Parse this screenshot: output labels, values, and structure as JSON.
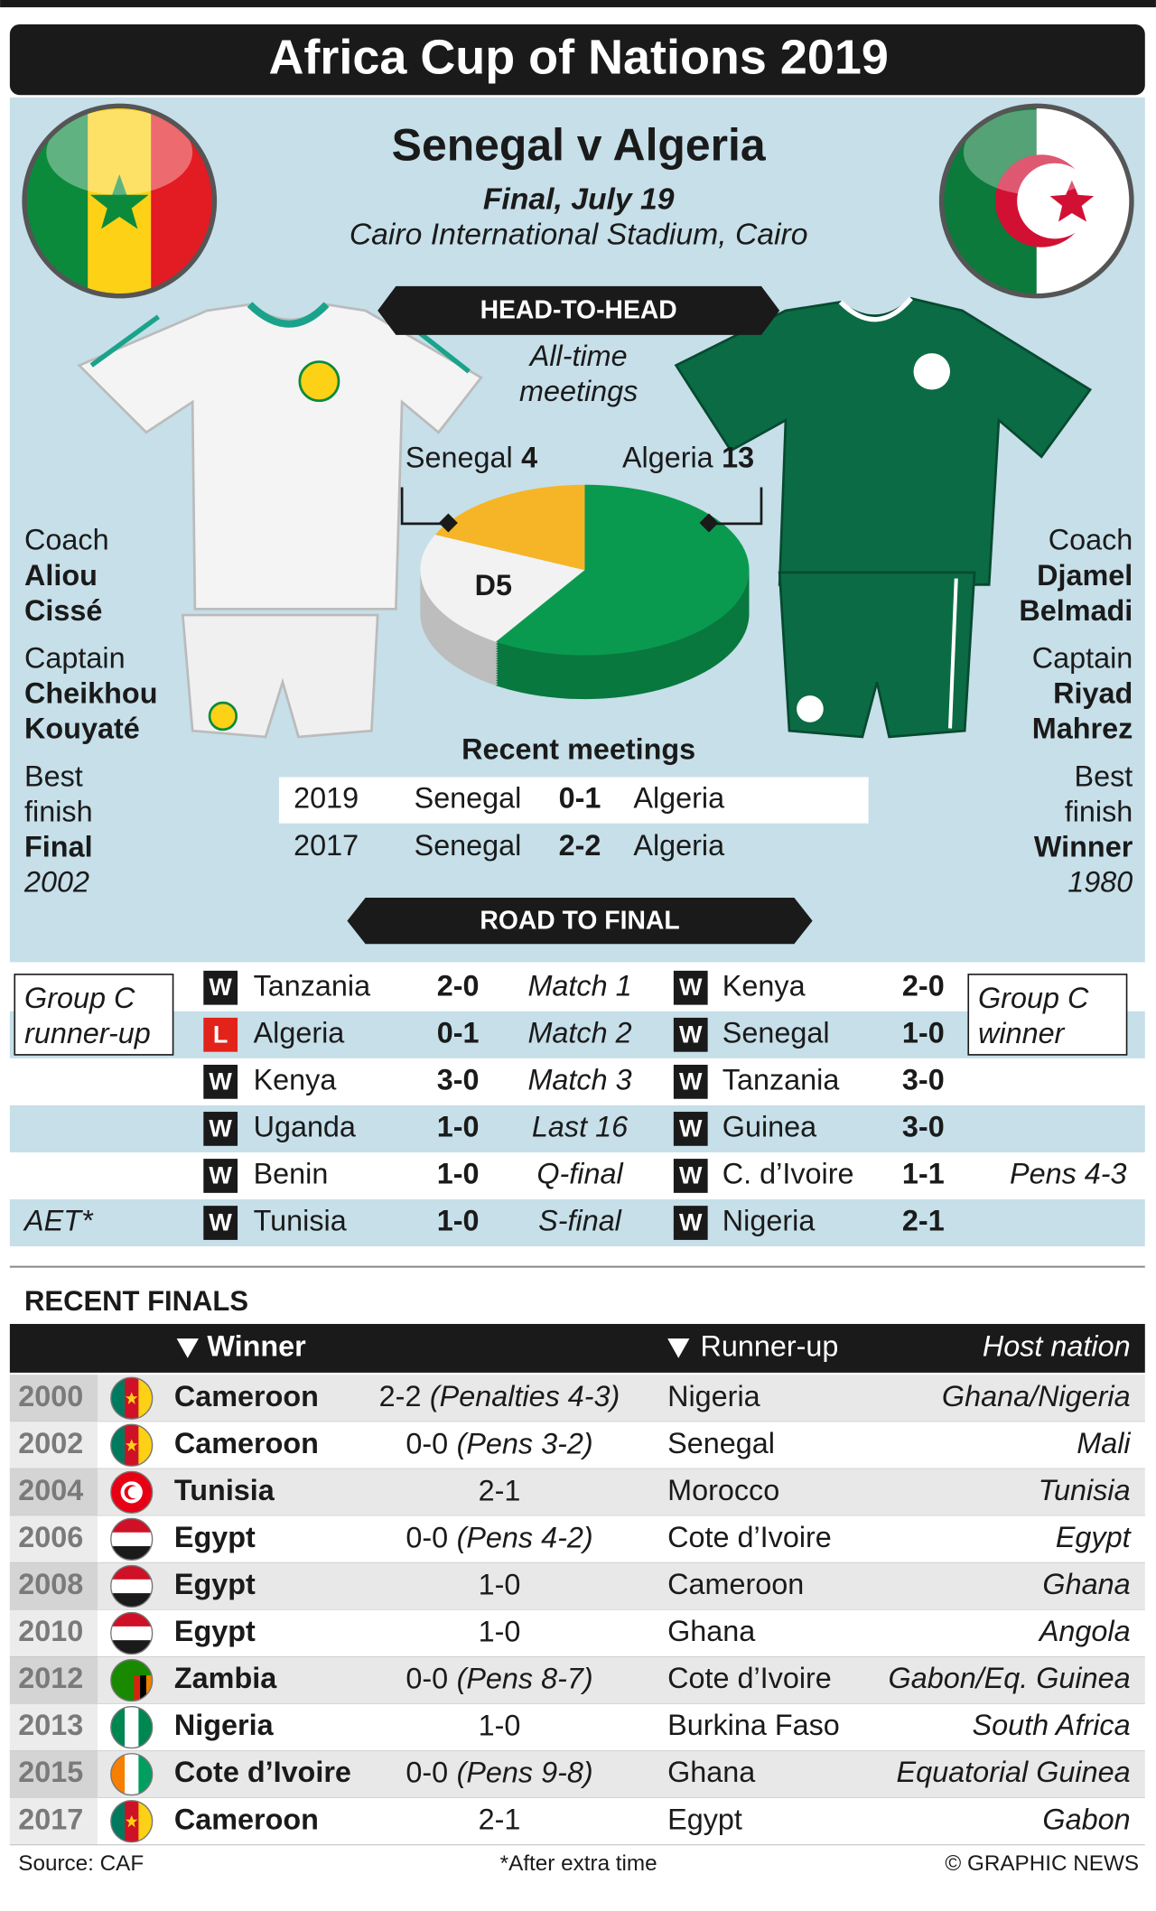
{
  "header": {
    "title": "Africa Cup of Nations 2019"
  },
  "match": {
    "title": "Senegal v Algeria",
    "subtitle": "Final, July 19",
    "venue": "Cairo International Stadium, Cairo"
  },
  "teams": [
    {
      "coach_label": "Coach",
      "coach": [
        "Aliou",
        "Cissé"
      ],
      "captain_label": "Captain",
      "captain": [
        "Cheikhou",
        "Kouyaté"
      ],
      "best_label": [
        "Best",
        "finish"
      ],
      "best": "Final",
      "best_year": "2002"
    },
    {
      "coach_label": "Coach",
      "coach": [
        "Djamel",
        "Belmadi"
      ],
      "captain_label": "Captain",
      "captain": [
        "Riyad",
        "Mahrez"
      ],
      "best_label": [
        "Best",
        "finish"
      ],
      "best": "Winner",
      "best_year": "1980"
    }
  ],
  "head_to_head": {
    "heading": "HEAD-TO-HEAD",
    "caption": [
      "All-time",
      "meetings"
    ],
    "segments": [
      {
        "name": "Algeria",
        "value": 13,
        "color": "#0a9a4f"
      },
      {
        "name": "D",
        "value": 5,
        "color": "#f2f2f2"
      },
      {
        "name": "Senegal",
        "value": 4,
        "color": "#f6b526"
      }
    ]
  },
  "recent_meetings": {
    "heading": "Recent meetings",
    "rows": [
      [
        "2019",
        "Senegal",
        "0-1",
        "Algeria"
      ],
      [
        "2017",
        "Senegal",
        "2-2",
        "Algeria"
      ]
    ]
  },
  "road_to_final": {
    "heading": "ROAD TO FINAL",
    "left_note": [
      "Group C",
      "runner-up"
    ],
    "right_note": [
      "Group C",
      "winner"
    ],
    "rows": [
      {
        "stage": "Match 1",
        "senegal": {
          "result": "W",
          "opponent": "Tanzania",
          "score": "2-0"
        },
        "algeria": {
          "result": "W",
          "opponent": "Kenya",
          "score": "2-0"
        }
      },
      {
        "stage": "Match 2",
        "senegal": {
          "result": "L",
          "opponent": "Algeria",
          "score": "0-1"
        },
        "algeria": {
          "result": "W",
          "opponent": "Senegal",
          "score": "1-0"
        }
      },
      {
        "stage": "Match 3",
        "senegal": {
          "result": "W",
          "opponent": "Kenya",
          "score": "3-0"
        },
        "algeria": {
          "result": "W",
          "opponent": "Tanzania",
          "score": "3-0"
        }
      },
      {
        "stage": "Last 16",
        "senegal": {
          "result": "W",
          "opponent": "Uganda",
          "score": "1-0"
        },
        "algeria": {
          "result": "W",
          "opponent": "Guinea",
          "score": "3-0"
        }
      },
      {
        "stage": "Q-final",
        "senegal": {
          "result": "W",
          "opponent": "Benin",
          "score": "1-0"
        },
        "algeria": {
          "result": "W",
          "opponent": "C. d’Ivoire",
          "score": "1-1"
        },
        "note_right": "Pens 4-3"
      },
      {
        "stage": "S-final",
        "senegal": {
          "result": "W",
          "opponent": "Tunisia",
          "score": "1-0"
        },
        "algeria": {
          "result": "W",
          "opponent": "Nigeria",
          "score": "2-1"
        },
        "note_left": "AET*"
      }
    ]
  },
  "recent_finals": {
    "heading": "RECENT FINALS",
    "columns": {
      "winner": "Winner",
      "runner_up": "Runner-up",
      "host": "Host nation"
    },
    "rows": [
      {
        "year": "2000",
        "winner": "Cameroon",
        "score": "2-2",
        "score_note": "(Penalties 4-3)",
        "runner_up": "Nigeria",
        "host": "Ghana/Nigeria"
      },
      {
        "year": "2002",
        "winner": "Cameroon",
        "score": "0-0",
        "score_note": "(Pens 3-2)",
        "runner_up": "Senegal",
        "host": "Mali"
      },
      {
        "year": "2004",
        "winner": "Tunisia",
        "score": "2-1",
        "runner_up": "Morocco",
        "host": "Tunisia"
      },
      {
        "year": "2006",
        "winner": "Egypt",
        "score": "0-0",
        "score_note": "(Pens 4-2)",
        "runner_up": "Cote d’Ivoire",
        "host": "Egypt"
      },
      {
        "year": "2008",
        "winner": "Egypt",
        "score": "1-0",
        "runner_up": "Cameroon",
        "host": "Ghana"
      },
      {
        "year": "2010",
        "winner": "Egypt",
        "score": "1-0",
        "runner_up": "Ghana",
        "host": "Angola"
      },
      {
        "year": "2012",
        "winner": "Zambia",
        "score": "0-0",
        "score_note": "(Pens 8-7)",
        "runner_up": "Cote d’Ivoire",
        "host": "Gabon/Eq. Guinea"
      },
      {
        "year": "2013",
        "winner": "Nigeria",
        "score": "1-0",
        "runner_up": "Burkina Faso",
        "host": "South Africa"
      },
      {
        "year": "2015",
        "winner": "Cote d’Ivoire",
        "score": "0-0",
        "score_note": "(Pens 9-8)",
        "runner_up": "Ghana",
        "host": "Equatorial Guinea"
      },
      {
        "year": "2017",
        "winner": "Cameroon",
        "score": "2-1",
        "runner_up": "Egypt",
        "host": "Gabon"
      }
    ]
  },
  "footer": {
    "source": "Source: CAF",
    "note": "*After extra time",
    "credit": "© GRAPHIC NEWS"
  }
}
